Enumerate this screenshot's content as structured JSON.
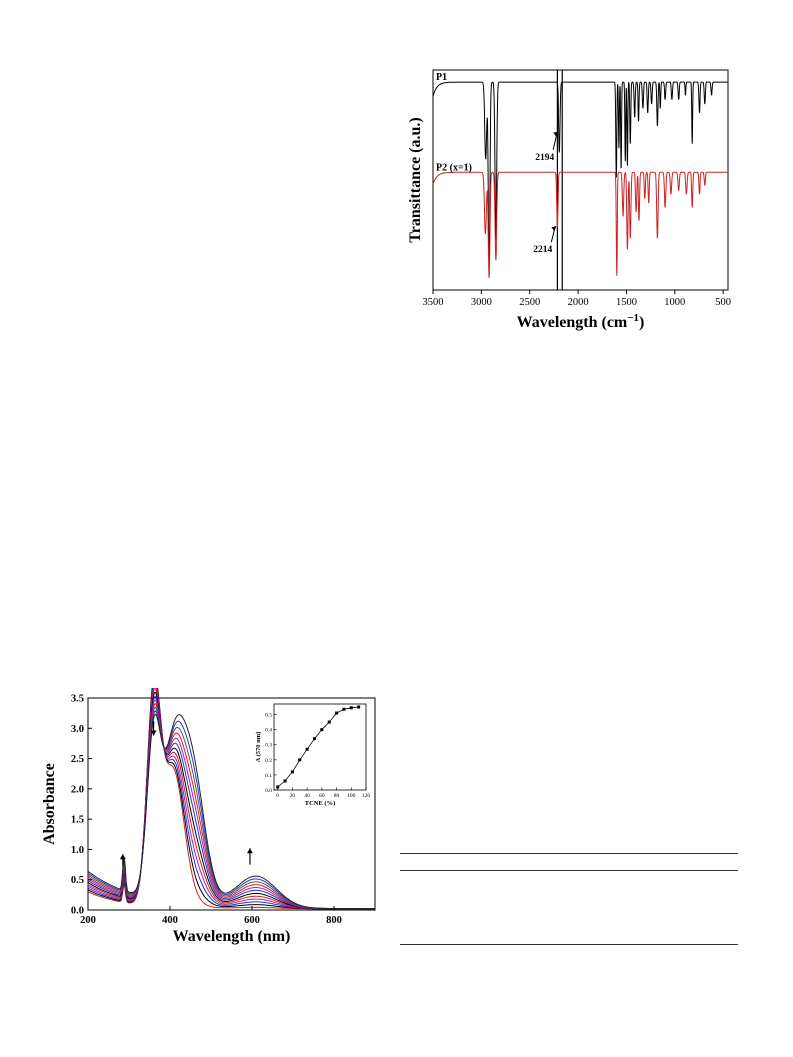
{
  "ir_chart": {
    "chart_data": {
      "type": "line",
      "xlabel": "Wavelength (cm",
      "xlabel_sup": "−1",
      "xlabel_close": ")",
      "ylabel": "Transittance (a.u.)",
      "xlim": [
        3500,
        450
      ],
      "xticks": [
        3500,
        3000,
        2500,
        2000,
        1500,
        1000,
        500
      ],
      "reference_lines": [
        2214,
        2164
      ],
      "series": [
        {
          "name": "P1",
          "color": "#000000",
          "baseline": 0.945,
          "start": [
            3500,
            0.88
          ],
          "bands": [
            [
              2955,
              0.35,
              14
            ],
            [
              2920,
              0.82,
              12
            ],
            [
              2850,
              0.72,
              12
            ],
            [
              2194,
              0.32,
              10
            ],
            [
              1605,
              0.44,
              7
            ],
            [
              1578,
              0.3,
              6
            ],
            [
              1555,
              0.4,
              6
            ],
            [
              1512,
              0.36,
              6
            ],
            [
              1490,
              0.38,
              6
            ],
            [
              1460,
              0.28,
              7
            ],
            [
              1415,
              0.16,
              8
            ],
            [
              1375,
              0.18,
              7
            ],
            [
              1330,
              0.12,
              8
            ],
            [
              1280,
              0.14,
              8
            ],
            [
              1240,
              0.1,
              8
            ],
            [
              1180,
              0.2,
              8
            ],
            [
              1150,
              0.12,
              6
            ],
            [
              1100,
              0.08,
              8
            ],
            [
              1030,
              0.08,
              8
            ],
            [
              960,
              0.08,
              8
            ],
            [
              890,
              0.06,
              6
            ],
            [
              820,
              0.28,
              6
            ],
            [
              745,
              0.14,
              8
            ],
            [
              690,
              0.1,
              8
            ],
            [
              620,
              0.06,
              8
            ]
          ]
        },
        {
          "name": "P2 (x=1)",
          "color": "#cc2222",
          "baseline": 0.535,
          "start": [
            3500,
            0.48
          ],
          "bands": [
            [
              2958,
              0.28,
              14
            ],
            [
              2920,
              0.48,
              12
            ],
            [
              2850,
              0.4,
              12
            ],
            [
              2214,
              0.25,
              9
            ],
            [
              1600,
              0.47,
              7
            ],
            [
              1535,
              0.2,
              10
            ],
            [
              1490,
              0.35,
              9
            ],
            [
              1460,
              0.3,
              9
            ],
            [
              1400,
              0.18,
              9
            ],
            [
              1370,
              0.22,
              8
            ],
            [
              1310,
              0.12,
              8
            ],
            [
              1270,
              0.14,
              8
            ],
            [
              1180,
              0.3,
              10
            ],
            [
              1100,
              0.16,
              10
            ],
            [
              1040,
              0.1,
              10
            ],
            [
              960,
              0.08,
              10
            ],
            [
              880,
              0.1,
              10
            ],
            [
              820,
              0.16,
              8
            ],
            [
              745,
              0.1,
              8
            ],
            [
              690,
              0.06,
              8
            ]
          ]
        }
      ],
      "annotations": [
        {
          "text": "2194",
          "x": 2194,
          "y": 0.72,
          "tx": 2340,
          "ty": 0.61
        },
        {
          "text": "2214",
          "x": 2214,
          "y": 0.29,
          "tx": 2360,
          "ty": 0.19
        }
      ]
    }
  },
  "uv_chart": {
    "chart_data": {
      "type": "line",
      "xlabel": "Wavelength (nm)",
      "ylabel": "Absorbance",
      "xlim": [
        200,
        900
      ],
      "ylim": [
        0,
        3.5
      ],
      "xticks": [
        200,
        400,
        600,
        800
      ],
      "yticks": [
        0.0,
        0.5,
        1.0,
        1.5,
        2.0,
        2.5,
        3.0,
        3.5
      ],
      "curve_count": 12,
      "curve_colors": [
        "#cc2222",
        "#000000",
        "#2233cc",
        "#aa22aa",
        "#cc2222",
        "#000000",
        "#2233cc",
        "#aa22aa",
        "#cc2222",
        "#555555",
        "#2233cc",
        "#222222"
      ],
      "t_values": [
        0.0,
        0.09,
        0.18,
        0.27,
        0.36,
        0.45,
        0.55,
        0.64,
        0.73,
        0.82,
        0.91,
        1.0
      ],
      "arrows": [
        {
          "x": 360,
          "y_from": 3.12,
          "y_to": 2.88,
          "direction": "down"
        },
        {
          "x": 285,
          "y_from": 0.72,
          "y_to": 0.92,
          "direction": "up"
        },
        {
          "x": 595,
          "y_from": 0.75,
          "y_to": 1.02,
          "direction": "up"
        }
      ]
    },
    "inset": {
      "chart_data": {
        "type": "scatter",
        "xlabel": "TCNE (%)",
        "ylabel": "A (570 nm)",
        "xlim": [
          -5,
          120
        ],
        "ylim": [
          0.0,
          0.57
        ],
        "xticks": [
          0,
          20,
          40,
          60,
          80,
          100,
          120
        ],
        "yticks": [
          0.0,
          0.1,
          0.2,
          0.3,
          0.4,
          0.5
        ],
        "x": [
          0,
          10,
          20,
          30,
          40,
          50,
          60,
          70,
          80,
          90,
          100,
          110
        ],
        "y": [
          0.02,
          0.06,
          0.12,
          0.2,
          0.27,
          0.34,
          0.4,
          0.45,
          0.51,
          0.535,
          0.545,
          0.55
        ]
      }
    }
  }
}
